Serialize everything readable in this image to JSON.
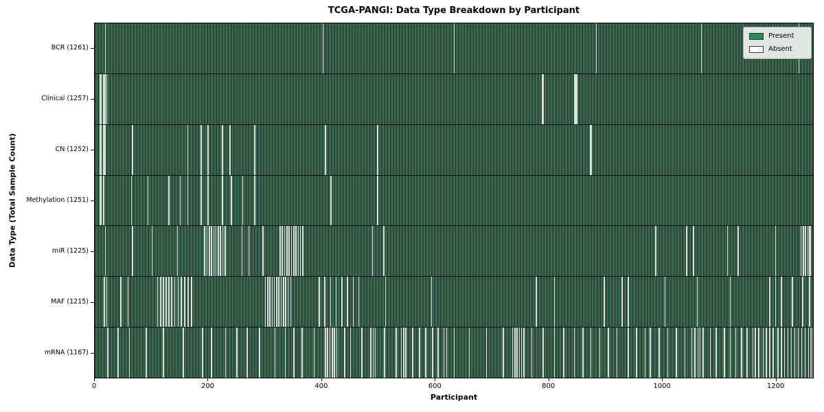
{
  "title": "TCGA-PANGI: Data Type Breakdown by Participant",
  "chart_data": {
    "type": "heatmap",
    "title": "TCGA-PANGI: Data Type Breakdown by Participant",
    "xlabel": "Participant",
    "ylabel": "Data Type (Total Sample Count)",
    "x_ticks": [
      0,
      200,
      400,
      600,
      800,
      1000,
      1200
    ],
    "xlim": [
      0,
      1267
    ],
    "grid": false,
    "legend": {
      "position": "upper right",
      "entries": [
        {
          "label": "Present",
          "color": "#2e8b57"
        },
        {
          "label": "Absent",
          "color": "#ffffff"
        }
      ]
    },
    "colors": {
      "present_fill": "#2e8b57",
      "bar_edge": "#000000",
      "absent_fill": "#ffffff",
      "row_divider": "#000000"
    },
    "rows": [
      {
        "name": "BCR",
        "label": "BCR (1261)",
        "present_count": 1261,
        "absent_indices": [
          18,
          402,
          633,
          884,
          1069,
          1241
        ]
      },
      {
        "name": "Clinical",
        "label": "Clinical (1257)",
        "present_count": 1257,
        "absent_indices": [
          8,
          10,
          15,
          17,
          20,
          788,
          790,
          846,
          848,
          850
        ]
      },
      {
        "name": "CN",
        "label": "CN (1252)",
        "present_count": 1252,
        "absent_indices": [
          8,
          10,
          15,
          17,
          66,
          163,
          187,
          199,
          224,
          238,
          281,
          406,
          498,
          873,
          875
        ]
      },
      {
        "name": "Methylation",
        "label": "Methylation (1251)",
        "present_count": 1251,
        "absent_indices": [
          8,
          10,
          15,
          64,
          93,
          130,
          150,
          163,
          187,
          199,
          224,
          240,
          260,
          281,
          416,
          498
        ]
      },
      {
        "name": "miR",
        "label": "miR (1225)",
        "present_count": 1225,
        "absent_indices": [
          18,
          66,
          100,
          145,
          193,
          197,
          201,
          205,
          209,
          213,
          217,
          221,
          225,
          229,
          259,
          271,
          296,
          326,
          330,
          334,
          338,
          342,
          346,
          350,
          354,
          358,
          362,
          366,
          489,
          509,
          989,
          1043,
          1055,
          1115,
          1134,
          1200,
          1245,
          1249,
          1253,
          1257,
          1260,
          1262
        ]
      },
      {
        "name": "MAF",
        "label": "MAF (1215)",
        "present_count": 1215,
        "absent_indices": [
          16,
          20,
          45,
          58,
          110,
          115,
          120,
          125,
          130,
          135,
          140,
          146,
          152,
          158,
          164,
          170,
          300,
          304,
          308,
          312,
          316,
          320,
          324,
          328,
          332,
          336,
          340,
          345,
          395,
          405,
          415,
          425,
          435,
          445,
          455,
          465,
          512,
          593,
          778,
          810,
          898,
          929,
          940,
          1005,
          1062,
          1120,
          1190,
          1200,
          1210,
          1230,
          1248,
          1260
        ]
      },
      {
        "name": "mRNA",
        "label": "mRNA (1167)",
        "present_count": 1167,
        "absent_indices": [
          22,
          40,
          60,
          90,
          120,
          155,
          189,
          205,
          230,
          250,
          268,
          290,
          317,
          335,
          350,
          365,
          386,
          406,
          410,
          414,
          418,
          422,
          426,
          440,
          450,
          470,
          486,
          490,
          494,
          510,
          531,
          540,
          544,
          548,
          560,
          572,
          583,
          595,
          605,
          615,
          620,
          633,
          660,
          690,
          720,
          736,
          740,
          744,
          748,
          752,
          756,
          770,
          790,
          810,
          826,
          845,
          860,
          874,
          890,
          905,
          920,
          940,
          955,
          970,
          979,
          995,
          1010,
          1025,
          1040,
          1052,
          1058,
          1063,
          1067,
          1072,
          1085,
          1095,
          1110,
          1120,
          1130,
          1140,
          1150,
          1160,
          1164,
          1170,
          1178,
          1184,
          1190,
          1196,
          1204,
          1210,
          1216,
          1222,
          1228,
          1234,
          1240,
          1246,
          1252,
          1258,
          1262,
          1264
        ]
      }
    ]
  }
}
